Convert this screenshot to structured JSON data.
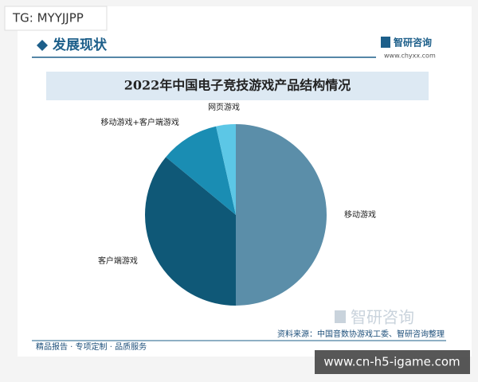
{
  "badge": "TG: MYYJJPP",
  "header": {
    "section": "发展现状",
    "brand": "智研咨询",
    "website": "www.chyxx.com"
  },
  "chart_data": {
    "type": "pie",
    "title": "2022年中国电子竞技游戏产品结构情况",
    "categories": [
      "移动游戏",
      "客户端游戏",
      "移动游戏+客户端游戏",
      "网页游戏"
    ],
    "values": [
      50,
      36,
      10.5,
      3.5
    ],
    "colors": [
      "#5b8ea9",
      "#0f5877",
      "#1a8db3",
      "#5cc7e6"
    ]
  },
  "source": "资料来源：中国音数协游戏工委、智研咨询整理",
  "footer": "精品报告 · 专项定制 · 品质服务",
  "watermark_badge": "www.cn-h5-igame.com"
}
